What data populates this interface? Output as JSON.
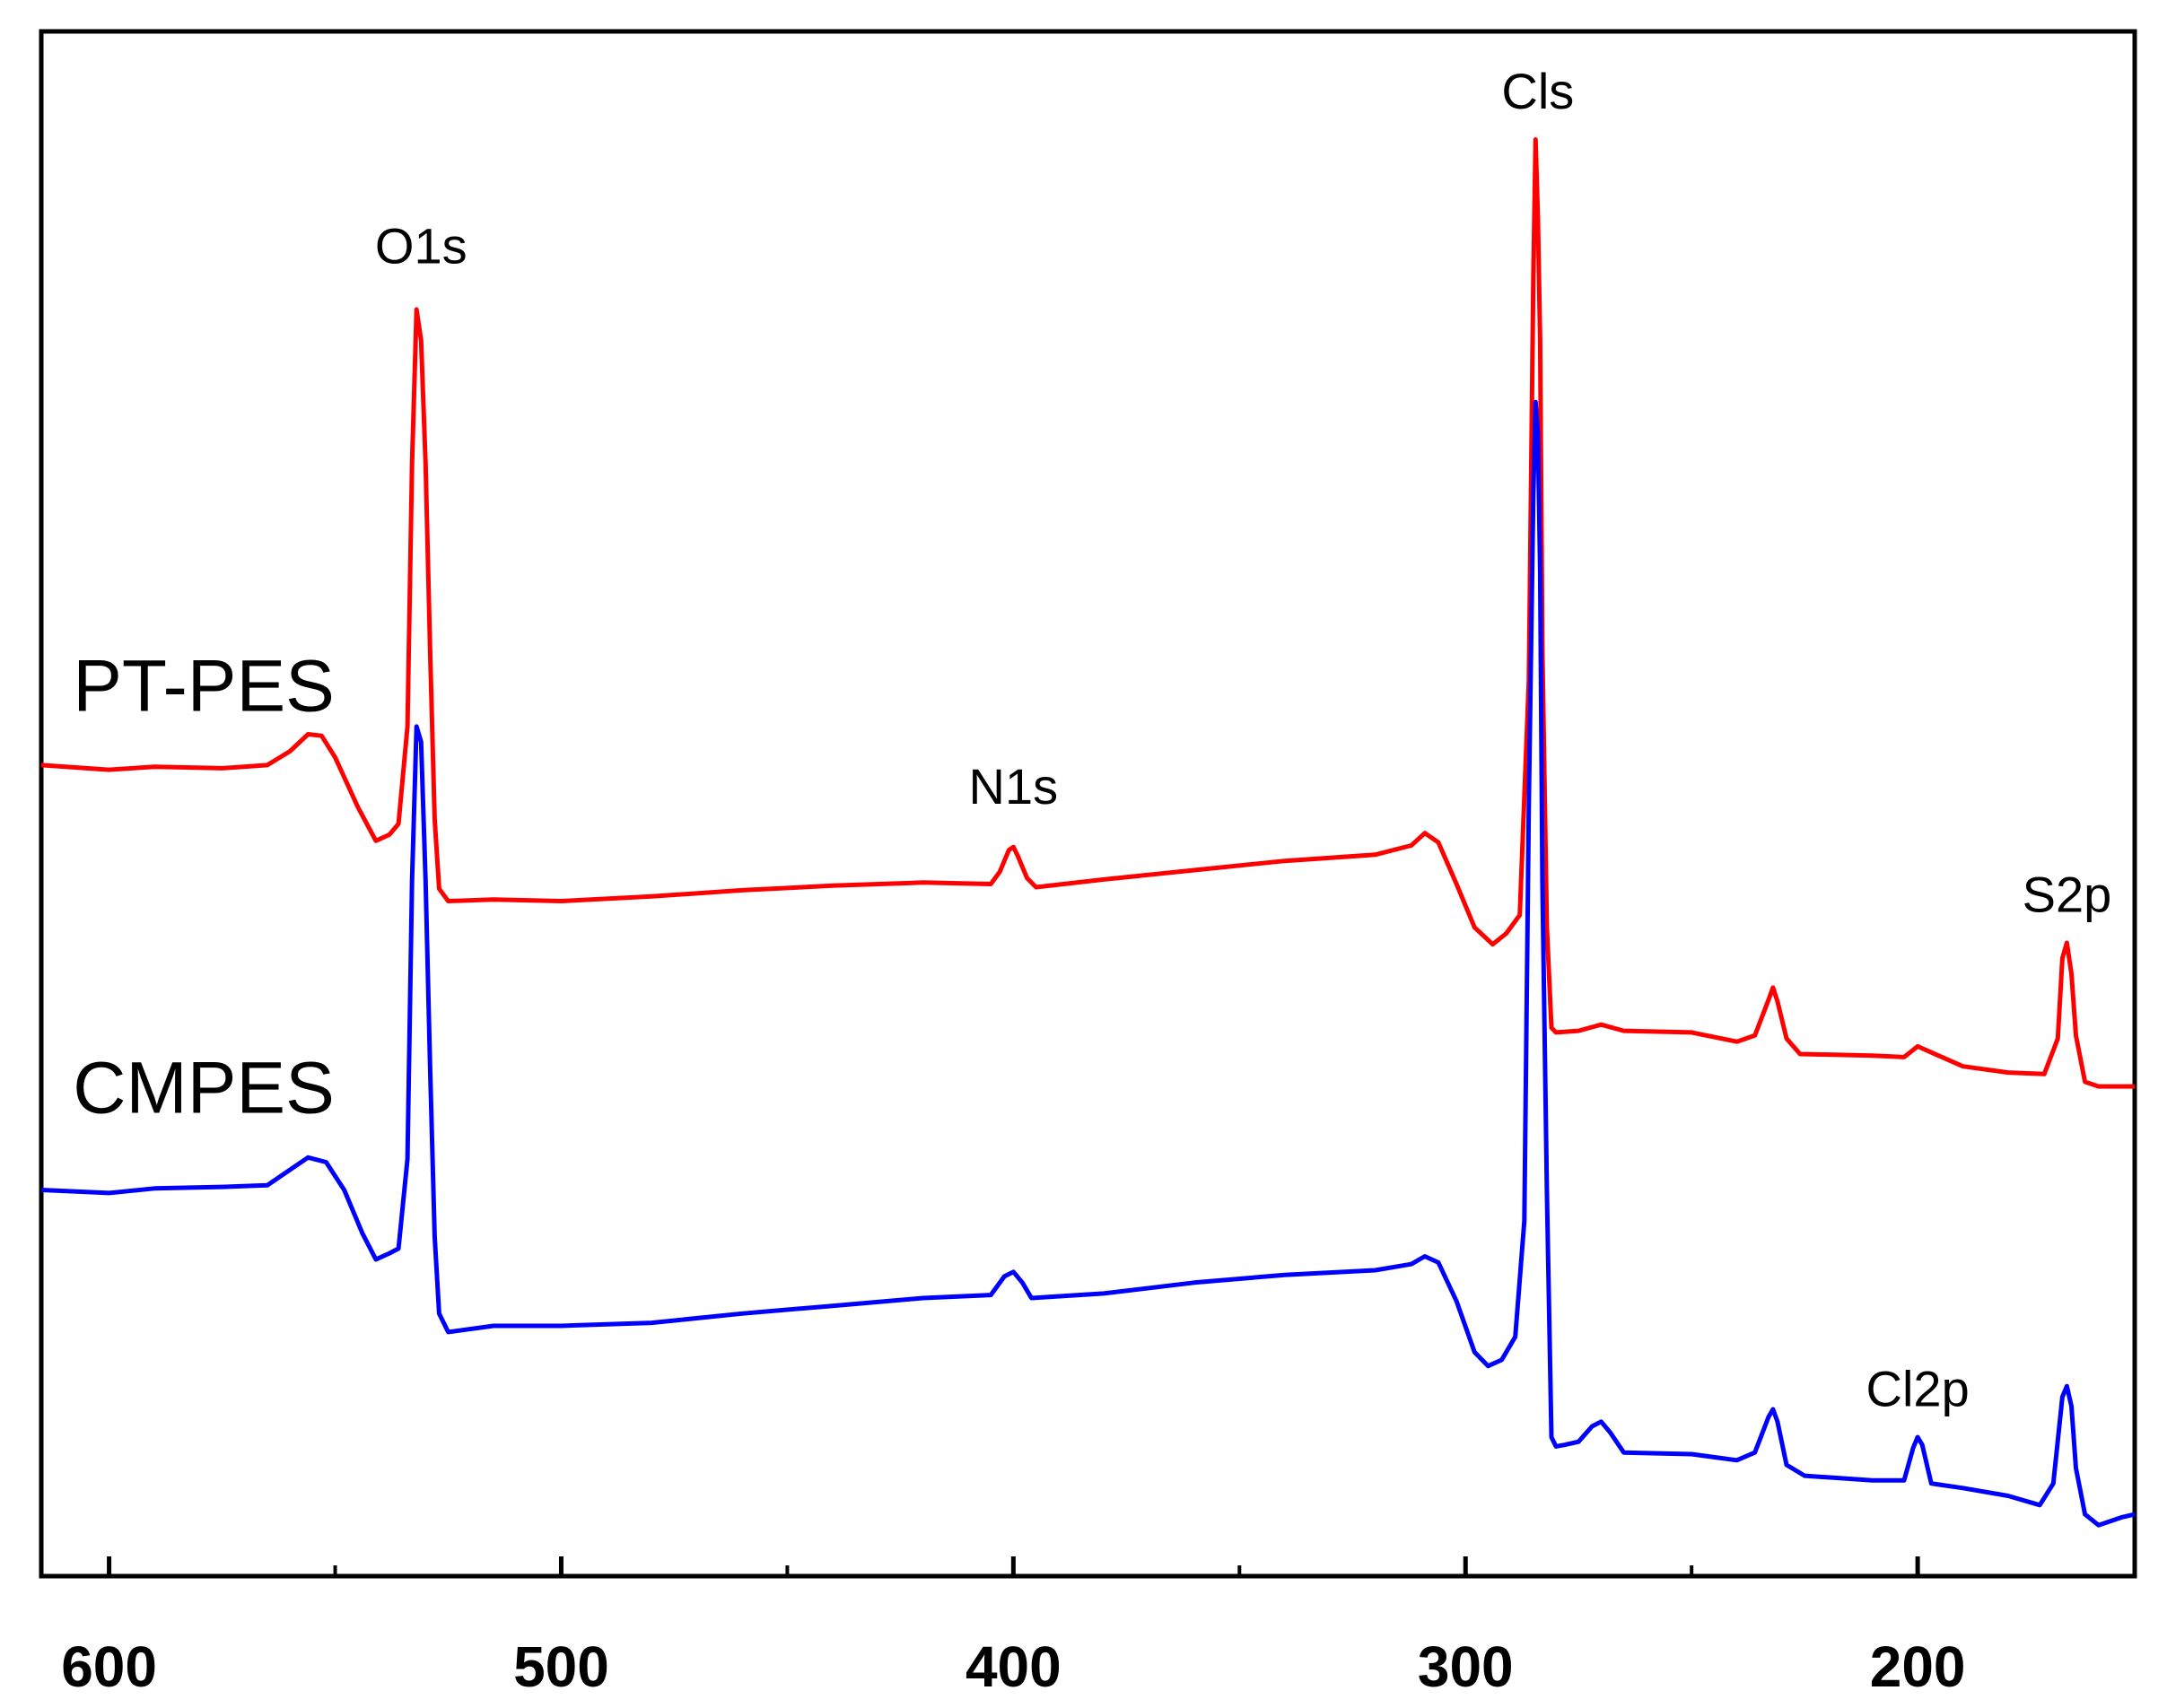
{
  "chart_data": {
    "type": "line",
    "title": "",
    "xlabel": "",
    "ylabel": "",
    "xlim": [
      615,
      152
    ],
    "ylim": [
      0,
      1
    ],
    "x_reversed": true,
    "grid": false,
    "legend": "none",
    "xticks": [
      600,
      500,
      400,
      300,
      200
    ],
    "series": [
      {
        "name": "PT-PES",
        "color": "#ff0000",
        "points": [
          [
            615,
            0.525
          ],
          [
            600,
            0.522
          ],
          [
            590,
            0.524
          ],
          [
            575,
            0.523
          ],
          [
            565,
            0.525
          ],
          [
            560,
            0.534
          ],
          [
            556,
            0.545
          ],
          [
            553,
            0.544
          ],
          [
            550,
            0.53
          ],
          [
            545,
            0.498
          ],
          [
            541,
            0.476
          ],
          [
            538,
            0.48
          ],
          [
            536,
            0.487
          ],
          [
            534,
            0.55
          ],
          [
            533,
            0.72
          ],
          [
            532,
            0.82
          ],
          [
            531,
            0.8
          ],
          [
            530,
            0.72
          ],
          [
            529,
            0.6
          ],
          [
            528,
            0.49
          ],
          [
            527,
            0.445
          ],
          [
            525,
            0.437
          ],
          [
            515,
            0.438
          ],
          [
            500,
            0.437
          ],
          [
            480,
            0.44
          ],
          [
            460,
            0.444
          ],
          [
            440,
            0.447
          ],
          [
            420,
            0.449
          ],
          [
            405,
            0.448
          ],
          [
            403,
            0.456
          ],
          [
            401,
            0.47
          ],
          [
            400,
            0.472
          ],
          [
            399,
            0.466
          ],
          [
            397,
            0.452
          ],
          [
            395,
            0.446
          ],
          [
            380,
            0.451
          ],
          [
            360,
            0.457
          ],
          [
            340,
            0.463
          ],
          [
            320,
            0.467
          ],
          [
            312,
            0.473
          ],
          [
            309,
            0.481
          ],
          [
            306,
            0.475
          ],
          [
            302,
            0.448
          ],
          [
            298,
            0.42
          ],
          [
            294,
            0.409
          ],
          [
            291,
            0.416
          ],
          [
            288,
            0.428
          ],
          [
            286,
            0.58
          ],
          [
            285,
            0.84
          ],
          [
            284.5,
            0.93
          ],
          [
            284,
            0.88
          ],
          [
            283.5,
            0.8
          ],
          [
            283,
            0.6
          ],
          [
            282,
            0.42
          ],
          [
            281,
            0.355
          ],
          [
            280,
            0.352
          ],
          [
            275,
            0.353
          ],
          [
            270,
            0.357
          ],
          [
            265,
            0.353
          ],
          [
            250,
            0.352
          ],
          [
            240,
            0.346
          ],
          [
            236,
            0.35
          ],
          [
            233,
            0.373
          ],
          [
            232,
            0.381
          ],
          [
            231,
            0.372
          ],
          [
            229,
            0.348
          ],
          [
            226,
            0.338
          ],
          [
            210,
            0.337
          ],
          [
            203,
            0.336
          ],
          [
            200,
            0.343
          ],
          [
            197,
            0.339
          ],
          [
            190,
            0.33
          ],
          [
            180,
            0.326
          ],
          [
            172,
            0.325
          ],
          [
            169,
            0.348
          ],
          [
            168,
            0.4
          ],
          [
            167,
            0.41
          ],
          [
            166,
            0.39
          ],
          [
            165,
            0.35
          ],
          [
            163,
            0.32
          ],
          [
            160,
            0.317
          ],
          [
            152,
            0.317
          ]
        ]
      },
      {
        "name": "CMPES",
        "color": "#0000ff",
        "points": [
          [
            615,
            0.25
          ],
          [
            600,
            0.248
          ],
          [
            590,
            0.251
          ],
          [
            575,
            0.252
          ],
          [
            565,
            0.253
          ],
          [
            560,
            0.263
          ],
          [
            556,
            0.271
          ],
          [
            552,
            0.268
          ],
          [
            548,
            0.25
          ],
          [
            544,
            0.222
          ],
          [
            541,
            0.205
          ],
          [
            538,
            0.209
          ],
          [
            536,
            0.212
          ],
          [
            534,
            0.27
          ],
          [
            533,
            0.45
          ],
          [
            532,
            0.55
          ],
          [
            531,
            0.54
          ],
          [
            530,
            0.45
          ],
          [
            529,
            0.33
          ],
          [
            528,
            0.22
          ],
          [
            527,
            0.17
          ],
          [
            525,
            0.158
          ],
          [
            515,
            0.162
          ],
          [
            500,
            0.162
          ],
          [
            480,
            0.164
          ],
          [
            460,
            0.17
          ],
          [
            440,
            0.175
          ],
          [
            420,
            0.18
          ],
          [
            405,
            0.182
          ],
          [
            402,
            0.194
          ],
          [
            400,
            0.197
          ],
          [
            398,
            0.19
          ],
          [
            396,
            0.18
          ],
          [
            380,
            0.183
          ],
          [
            360,
            0.19
          ],
          [
            340,
            0.195
          ],
          [
            320,
            0.198
          ],
          [
            312,
            0.202
          ],
          [
            309,
            0.207
          ],
          [
            306,
            0.203
          ],
          [
            302,
            0.178
          ],
          [
            298,
            0.145
          ],
          [
            295,
            0.136
          ],
          [
            292,
            0.14
          ],
          [
            289,
            0.155
          ],
          [
            287,
            0.23
          ],
          [
            286,
            0.5
          ],
          [
            285,
            0.7
          ],
          [
            284.5,
            0.76
          ],
          [
            284,
            0.74
          ],
          [
            283.5,
            0.65
          ],
          [
            283,
            0.45
          ],
          [
            282,
            0.25
          ],
          [
            281,
            0.09
          ],
          [
            280,
            0.084
          ],
          [
            278,
            0.085
          ],
          [
            275,
            0.087
          ],
          [
            272,
            0.097
          ],
          [
            270,
            0.1
          ],
          [
            268,
            0.093
          ],
          [
            265,
            0.08
          ],
          [
            250,
            0.079
          ],
          [
            240,
            0.075
          ],
          [
            236,
            0.08
          ],
          [
            233,
            0.103
          ],
          [
            232,
            0.108
          ],
          [
            231,
            0.1
          ],
          [
            229,
            0.072
          ],
          [
            225,
            0.065
          ],
          [
            210,
            0.062
          ],
          [
            203,
            0.062
          ],
          [
            201,
            0.083
          ],
          [
            200,
            0.09
          ],
          [
            199,
            0.085
          ],
          [
            197,
            0.06
          ],
          [
            190,
            0.057
          ],
          [
            180,
            0.052
          ],
          [
            173,
            0.046
          ],
          [
            170,
            0.06
          ],
          [
            168,
            0.116
          ],
          [
            167,
            0.123
          ],
          [
            166,
            0.11
          ],
          [
            165,
            0.07
          ],
          [
            163,
            0.04
          ],
          [
            160,
            0.033
          ],
          [
            155,
            0.038
          ],
          [
            152,
            0.04
          ]
        ]
      }
    ],
    "annotations": [
      {
        "text": "O1s",
        "x": 531,
        "y": 0.85
      },
      {
        "text": "N1s",
        "x": 400,
        "y": 0.5
      },
      {
        "text": "Cls",
        "x": 284,
        "y": 0.95
      },
      {
        "text": "S2p",
        "x": 167,
        "y": 0.43
      },
      {
        "text": "Cl2p",
        "x": 200,
        "y": 0.11
      }
    ],
    "series_labels": [
      {
        "text": "PT-PES",
        "x": 610,
        "y": 0.56
      },
      {
        "text": "CMPES",
        "x": 610,
        "y": 0.3
      }
    ]
  }
}
